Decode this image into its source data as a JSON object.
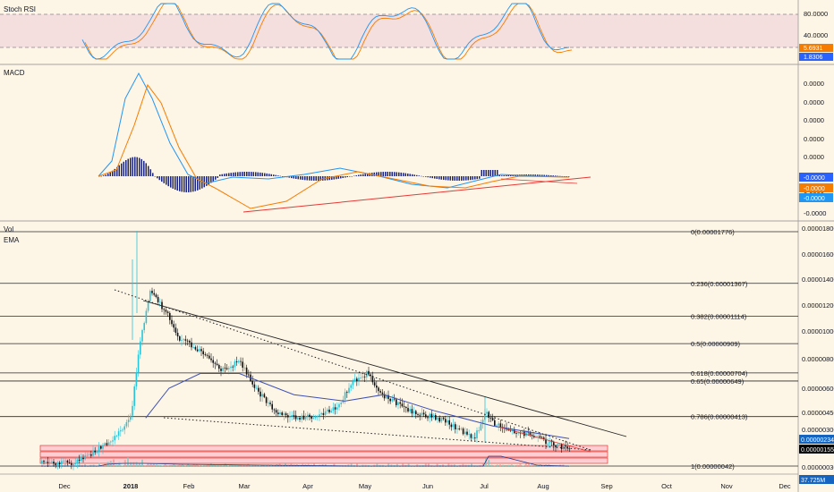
{
  "panes": {
    "stoch": {
      "label": "Stoch RSI",
      "ticks": [
        {
          "v": 80,
          "t": "80.0000"
        },
        {
          "v": 40,
          "t": "40.0000"
        }
      ],
      "badges": [
        {
          "t": "5.6931",
          "c": "#f57c00",
          "v": 5.6931
        },
        {
          "t": "1.8306",
          "c": "#2962ff",
          "v": 1.8306
        }
      ]
    },
    "macd": {
      "label": "MACD",
      "ticks": [
        "0.0000",
        "0.0000",
        "0.0000",
        "0.0000",
        "0.0000",
        "0.0000",
        "0.0000",
        "-0.0000"
      ],
      "badges": [
        {
          "t": "-0.0000",
          "c": "#2962ff"
        },
        {
          "t": "-0.0000",
          "c": "#f57c00"
        },
        {
          "t": "-0.0000",
          "c": "#2196f3"
        }
      ]
    },
    "price": {
      "labels": [
        "Vol",
        "EMA"
      ],
      "ticks": [
        "0.00001800",
        "0.00001600",
        "0.00001400",
        "0.00001200",
        "0.00001000",
        "0.00000800",
        "0.00000600",
        "0.00000450",
        "0.00000300",
        "0.00000030"
      ],
      "badges": [
        {
          "t": "0.00000234",
          "c": "#1565c0"
        },
        {
          "t": "0.00000155",
          "c": "#000000"
        }
      ],
      "bottom_tag": "37.725M"
    }
  },
  "fib": [
    {
      "label": "0(0.00001776)",
      "value": 1.776e-05
    },
    {
      "label": "0.236(0.00001367)",
      "value": 1.367e-05
    },
    {
      "label": "0.382(0.00001114)",
      "value": 1.114e-05
    },
    {
      "label": "0.5(0.00000909)",
      "value": 9.09e-06
    },
    {
      "label": "0.618(0.00000704)",
      "value": 7.04e-06
    },
    {
      "label": "0.65(0.00000649)",
      "value": 6.49e-06
    },
    {
      "label": "0.786(0.00000413)",
      "value": 4.13e-06
    },
    {
      "label": "1(0.00000042)",
      "value": 4.2e-07
    }
  ],
  "x_axis": [
    "Dec",
    "2018",
    "Feb",
    "Mar",
    "Apr",
    "May",
    "Jun",
    "Jul",
    "Aug",
    "Sep",
    "Oct",
    "Nov",
    "Dec"
  ],
  "chart_data": {
    "type": "candlestick",
    "x_range": [
      "2017-11-15",
      "2018-08-13"
    ],
    "y_range": [
      0,
      1.8e-05
    ],
    "close": [
      {
        "x": "2017-11-15",
        "y": 6e-07
      },
      {
        "x": "2017-12-01",
        "y": 5.5e-07
      },
      {
        "x": "2017-12-20",
        "y": 2e-06
      },
      {
        "x": "2017-12-31",
        "y": 4e-06
      },
      {
        "x": "2018-01-05",
        "y": 9.5e-06
      },
      {
        "x": "2018-01-10",
        "y": 1.3e-05
      },
      {
        "x": "2018-01-18",
        "y": 1.15e-05
      },
      {
        "x": "2018-01-25",
        "y": 9.5e-06
      },
      {
        "x": "2018-02-05",
        "y": 8.5e-06
      },
      {
        "x": "2018-02-15",
        "y": 7.2e-06
      },
      {
        "x": "2018-02-25",
        "y": 7.8e-06
      },
      {
        "x": "2018-03-05",
        "y": 6e-06
      },
      {
        "x": "2018-03-15",
        "y": 4.5e-06
      },
      {
        "x": "2018-03-25",
        "y": 4e-06
      },
      {
        "x": "2018-04-05",
        "y": 4.2e-06
      },
      {
        "x": "2018-04-15",
        "y": 4.8e-06
      },
      {
        "x": "2018-04-25",
        "y": 6.5e-06
      },
      {
        "x": "2018-05-01",
        "y": 7e-06
      },
      {
        "x": "2018-05-10",
        "y": 5.5e-06
      },
      {
        "x": "2018-05-25",
        "y": 4.5e-06
      },
      {
        "x": "2018-06-10",
        "y": 3.8e-06
      },
      {
        "x": "2018-06-25",
        "y": 2.3e-06
      },
      {
        "x": "2018-07-01",
        "y": 4.6e-06
      },
      {
        "x": "2018-07-05",
        "y": 3.5e-06
      },
      {
        "x": "2018-07-15",
        "y": 2.9e-06
      },
      {
        "x": "2018-07-25",
        "y": 2.5e-06
      },
      {
        "x": "2018-08-05",
        "y": 1.9e-06
      },
      {
        "x": "2018-08-13",
        "y": 1.55e-06
      }
    ],
    "ema": [
      {
        "x": "2018-01-08",
        "y": 4e-06
      },
      {
        "x": "2018-01-20",
        "y": 6e-06
      },
      {
        "x": "2018-02-05",
        "y": 7e-06
      },
      {
        "x": "2018-02-25",
        "y": 7e-06
      },
      {
        "x": "2018-03-25",
        "y": 5.6e-06
      },
      {
        "x": "2018-04-20",
        "y": 5.2e-06
      },
      {
        "x": "2018-05-10",
        "y": 5.6e-06
      },
      {
        "x": "2018-06-05",
        "y": 4.6e-06
      },
      {
        "x": "2018-07-05",
        "y": 3.3e-06
      },
      {
        "x": "2018-08-13",
        "y": 2.34e-06
      }
    ]
  }
}
